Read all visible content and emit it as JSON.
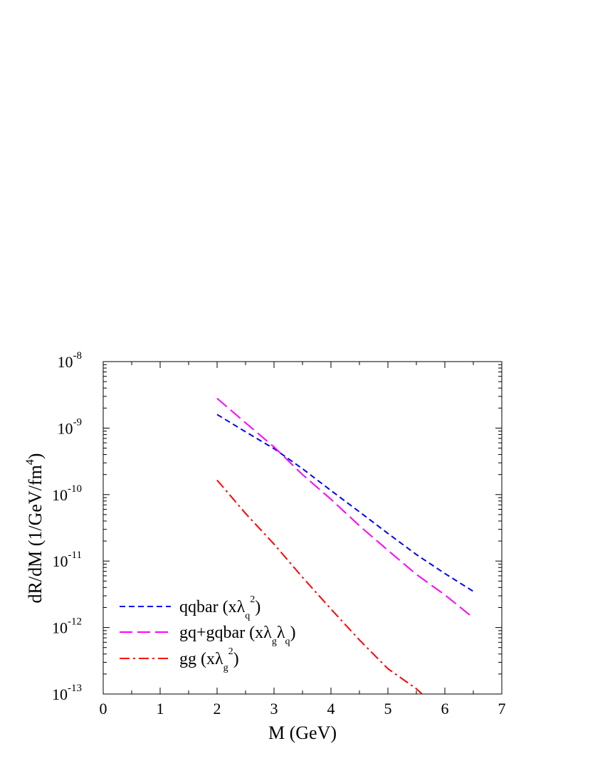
{
  "chart_data": {
    "type": "line",
    "xlabel": "M (GeV)",
    "ylabel_main": "dR/dM (1/GeV/fm",
    "ylabel_sup": "4",
    "ylabel_close": ")",
    "xlim": [
      0,
      7
    ],
    "ylim": [
      1e-13,
      1e-08
    ],
    "yscale": "log",
    "x_ticks": [
      {
        "value": 0,
        "label": "0"
      },
      {
        "value": 1,
        "label": "1"
      },
      {
        "value": 2,
        "label": "2"
      },
      {
        "value": 3,
        "label": "3"
      },
      {
        "value": 4,
        "label": "4"
      },
      {
        "value": 5,
        "label": "5"
      },
      {
        "value": 6,
        "label": "6"
      },
      {
        "value": 7,
        "label": "7"
      }
    ],
    "y_ticks": [
      {
        "value": 1e-13,
        "base": "10",
        "exp": "-13"
      },
      {
        "value": 1e-12,
        "base": "10",
        "exp": "-12"
      },
      {
        "value": 1e-11,
        "base": "10",
        "exp": "-11"
      },
      {
        "value": 1e-10,
        "base": "10",
        "exp": "-10"
      },
      {
        "value": 1e-09,
        "base": "10",
        "exp": "-9"
      },
      {
        "value": 1e-08,
        "base": "10",
        "exp": "-8"
      }
    ],
    "grid": false,
    "legend_position": "bottom-left",
    "series": [
      {
        "key": "qqbar",
        "color": "#0000ff",
        "dash": "short-dash",
        "legend": {
          "text": "qqbar (xλ",
          "sub": "q",
          "sup": "2",
          "tail": ")"
        },
        "x": [
          2.0,
          2.5,
          3.0,
          3.5,
          4.0,
          4.5,
          5.0,
          5.5,
          6.0,
          6.5
        ],
        "y": [
          1.6e-09,
          8.8e-10,
          4.9e-10,
          2.45e-10,
          1.15e-10,
          5.5e-11,
          2.6e-11,
          1.25e-11,
          6.5e-12,
          3.5e-12
        ]
      },
      {
        "key": "gq_gqbar",
        "color": "#ff00ff",
        "dash": "long-dash",
        "legend": {
          "text": "gq+gqbar (xλ",
          "sub": "g",
          "mid": "λ",
          "sub2": "q",
          "tail": ")"
        },
        "x": [
          2.0,
          2.5,
          3.0,
          3.5,
          4.0,
          4.5,
          5.0,
          5.5,
          6.0,
          6.5
        ],
        "y": [
          2.8e-09,
          1.2e-09,
          5.2e-10,
          2e-10,
          8.5e-11,
          3.4e-11,
          1.45e-11,
          6.3e-12,
          3.1e-12,
          1.4e-12
        ]
      },
      {
        "key": "gg",
        "color": "#ff0000",
        "dash": "dash-dot",
        "legend": {
          "text": "gg (xλ",
          "sub": "g",
          "sup": "2",
          "tail": ")"
        },
        "x": [
          2.0,
          2.5,
          3.0,
          3.5,
          4.0,
          4.5,
          5.0,
          5.5,
          5.6
        ],
        "y": [
          1.65e-10,
          5.2e-11,
          1.8e-11,
          5.7e-12,
          1.9e-12,
          6.5e-13,
          2.4e-13,
          1.2e-13,
          1e-13
        ]
      }
    ]
  }
}
